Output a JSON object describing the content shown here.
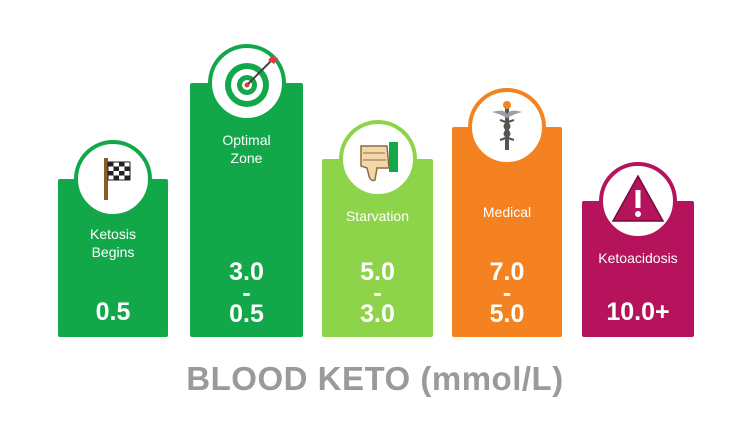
{
  "title": "BLOOD KETO (mmol/L)",
  "chart_data": {
    "type": "bar",
    "categories": [
      "Ketosis\nBegins",
      "Optimal\nZone",
      "Starvation",
      "Medical",
      "Ketoacidosis"
    ],
    "value_labels": [
      [
        "0.5"
      ],
      [
        "3.0",
        "-",
        "0.5"
      ],
      [
        "5.0",
        "-",
        "3.0"
      ],
      [
        "7.0",
        "-",
        "5.0"
      ],
      [
        "10.0+"
      ]
    ],
    "series": [
      {
        "values": [
          0.5,
          3.0,
          5.0,
          7.0,
          10.0
        ]
      }
    ],
    "colors": [
      "#12a84a",
      "#12a84a",
      "#8ed44a",
      "#f58220",
      "#b5135b"
    ],
    "icons": [
      "checkered-flag-icon",
      "target-arrow-icon",
      "thumbs-down-icon",
      "caduceus-icon",
      "warning-triangle-icon"
    ],
    "xlabel": "BLOOD KETO (mmol/L)",
    "legend": "none",
    "grid": false
  }
}
